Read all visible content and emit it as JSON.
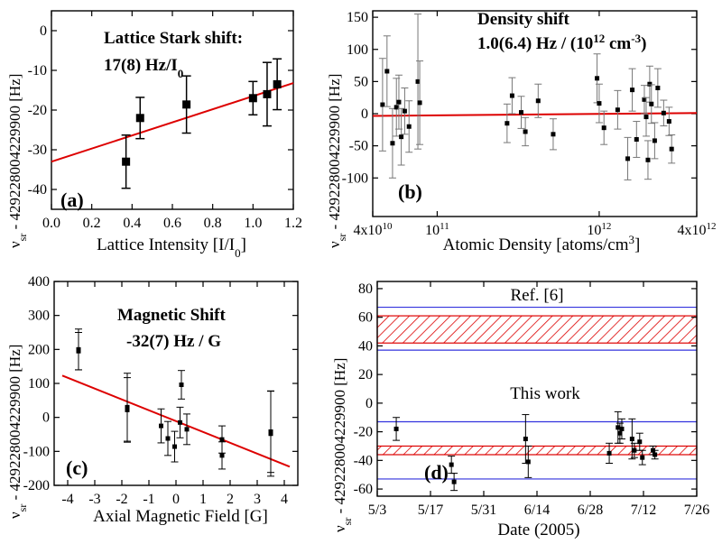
{
  "chart_data": [
    {
      "type": "scatter",
      "panel_label": "(a)",
      "title_lines": [
        "Lattice Stark shift:",
        "17(8) Hz/I"
      ],
      "title_sub": "0",
      "xlabel": "Lattice Intensity [I/I",
      "xlabel_sub": "0",
      "xlabel_end": "]",
      "ylabel": "ν",
      "ylabel_sub": "sr",
      "ylabel_rest": " - 429228004229900  [Hz]",
      "xlim": [
        0.0,
        1.2
      ],
      "ylim": [
        -45,
        5
      ],
      "xticks": [
        "0.0",
        "0.2",
        "0.4",
        "0.6",
        "0.8",
        "1.0",
        "1.2"
      ],
      "yticks": [
        "0",
        "-10",
        "-20",
        "-30",
        "-40"
      ],
      "xtick_values": [
        0.0,
        0.2,
        0.4,
        0.6,
        0.8,
        1.0,
        1.2
      ],
      "ytick_values": [
        0,
        -10,
        -20,
        -30,
        -40
      ],
      "points": [
        {
          "x": 0.37,
          "y": -33,
          "err": 6.7
        },
        {
          "x": 0.44,
          "y": -22,
          "err": 5.2
        },
        {
          "x": 0.67,
          "y": -18.6,
          "err": 7.2
        },
        {
          "x": 1.0,
          "y": -17,
          "err": 4.2
        },
        {
          "x": 1.07,
          "y": -16,
          "err": 8.0
        },
        {
          "x": 1.12,
          "y": -13.5,
          "err": 6.4
        }
      ],
      "fit": {
        "x": [
          0.0,
          1.2
        ],
        "y": [
          -33,
          -13.2
        ],
        "color": "#dd0000"
      }
    },
    {
      "type": "scatter",
      "panel_label": "(b)",
      "title_lines": [
        "Density shift",
        "1.0(6.4) Hz / (10"
      ],
      "title_sup": "12",
      "title_end": " cm",
      "title_end_sup": "-3",
      "title_close": ")",
      "xlabel": "Atomic Density [atoms/cm",
      "xlabel_sup": "3",
      "xlabel_end": "]",
      "ylabel": "ν",
      "ylabel_sub": "sr",
      "ylabel_rest": " - 429228004229900  [Hz]",
      "xscale": "log",
      "xlim": [
        40000000000.0,
        4000000000000.0
      ],
      "ylim": [
        -160,
        160
      ],
      "xticks": [
        "4x10",
        "10",
        "10",
        "4x10"
      ],
      "xtick_sups": [
        "10",
        "11",
        "12",
        "12"
      ],
      "xtick_values": [
        40000000000.0,
        100000000000.0,
        1000000000000.0,
        4000000000000.0
      ],
      "yticks": [
        "150",
        "100",
        "50",
        "0",
        "-50",
        "-100"
      ],
      "ytick_values": [
        150,
        100,
        50,
        0,
        -50,
        -100
      ],
      "points": [
        {
          "x": 46000000000.0,
          "y": 14,
          "err": 72
        },
        {
          "x": 49000000000.0,
          "y": 66,
          "err": 55
        },
        {
          "x": 53000000000.0,
          "y": -46,
          "err": 54
        },
        {
          "x": 56000000000.0,
          "y": 10,
          "err": 45
        },
        {
          "x": 58000000000.0,
          "y": 18,
          "err": 42
        },
        {
          "x": 60000000000.0,
          "y": -36,
          "err": 44
        },
        {
          "x": 63000000000.0,
          "y": 4,
          "err": 36
        },
        {
          "x": 67000000000.0,
          "y": -20,
          "err": 40
        },
        {
          "x": 76000000000.0,
          "y": 50,
          "err": 105
        },
        {
          "x": 78000000000.0,
          "y": 17,
          "err": 65
        },
        {
          "x": 270000000000.0,
          "y": -15,
          "err": 30
        },
        {
          "x": 290000000000.0,
          "y": 28,
          "err": 28
        },
        {
          "x": 330000000000.0,
          "y": 2,
          "err": 25
        },
        {
          "x": 350000000000.0,
          "y": -28,
          "err": 22
        },
        {
          "x": 420000000000.0,
          "y": 20,
          "err": 26
        },
        {
          "x": 520000000000.0,
          "y": -32,
          "err": 24
        },
        {
          "x": 970000000000.0,
          "y": 55,
          "err": 38
        },
        {
          "x": 1000000000000.0,
          "y": 16,
          "err": 30
        },
        {
          "x": 1070000000000.0,
          "y": -22,
          "err": 26
        },
        {
          "x": 1300000000000.0,
          "y": 6,
          "err": 30
        },
        {
          "x": 1500000000000.0,
          "y": -70,
          "err": 33
        },
        {
          "x": 1600000000000.0,
          "y": 37,
          "err": 33
        },
        {
          "x": 1700000000000.0,
          "y": -40,
          "err": 28
        },
        {
          "x": 1900000000000.0,
          "y": 22,
          "err": 22
        },
        {
          "x": 1950000000000.0,
          "y": -5,
          "err": 30
        },
        {
          "x": 2000000000000.0,
          "y": -72,
          "err": 30
        },
        {
          "x": 2050000000000.0,
          "y": 46,
          "err": 28
        },
        {
          "x": 2100000000000.0,
          "y": 15,
          "err": 30
        },
        {
          "x": 2200000000000.0,
          "y": -42,
          "err": 28
        },
        {
          "x": 2300000000000.0,
          "y": 40,
          "err": 30
        },
        {
          "x": 2500000000000.0,
          "y": 1,
          "err": 20
        },
        {
          "x": 2700000000000.0,
          "y": -12,
          "err": 22
        },
        {
          "x": 2800000000000.0,
          "y": -55,
          "err": 22
        }
      ],
      "fit": {
        "x": [
          40000000000.0,
          4000000000000.0
        ],
        "y": [
          -3.5,
          1.0
        ],
        "color": "#dd0000"
      }
    },
    {
      "type": "scatter",
      "panel_label": "(c)",
      "title_lines": [
        "Magnetic Shift",
        "-32(7) Hz / G"
      ],
      "xlabel": "Axial Magnetic Field  [G]",
      "ylabel": "ν",
      "ylabel_sub": "sr",
      "ylabel_rest": " - 429228004229900  [Hz]",
      "xlim": [
        -4.5,
        4.5
      ],
      "ylim": [
        -200,
        400
      ],
      "xticks": [
        "-4",
        "-3",
        "-2",
        "-1",
        "0",
        "1",
        "2",
        "3",
        "4"
      ],
      "xtick_values": [
        -4,
        -3,
        -2,
        -1,
        0,
        1,
        2,
        3,
        4
      ],
      "yticks": [
        "400",
        "300",
        "200",
        "100",
        "0",
        "-100",
        "-200"
      ],
      "ytick_values": [
        400,
        300,
        200,
        100,
        0,
        -100,
        -200
      ],
      "points": [
        {
          "x": -3.6,
          "y": 195,
          "err": 55
        },
        {
          "x": -3.6,
          "y": 200,
          "err": 60
        },
        {
          "x": -1.8,
          "y": 22,
          "err": 95
        },
        {
          "x": -1.8,
          "y": 30,
          "err": 100
        },
        {
          "x": -0.55,
          "y": -25,
          "err": 50
        },
        {
          "x": -0.3,
          "y": -62,
          "err": 50
        },
        {
          "x": -0.05,
          "y": -86,
          "err": 45
        },
        {
          "x": 0.15,
          "y": -15,
          "err": 45
        },
        {
          "x": 0.2,
          "y": 96,
          "err": 42
        },
        {
          "x": 0.4,
          "y": -35,
          "err": 45
        },
        {
          "x": 1.7,
          "y": -65,
          "err": 40
        },
        {
          "x": 1.7,
          "y": -112,
          "err": 40
        },
        {
          "x": 3.5,
          "y": -42,
          "err": 120
        },
        {
          "x": 3.5,
          "y": -48,
          "err": 125
        }
      ],
      "fit": {
        "x": [
          -4.2,
          4.2
        ],
        "y": [
          123,
          -145
        ],
        "color": "#dd0000"
      }
    },
    {
      "type": "scatter",
      "panel_label": "(d)",
      "annotations": [
        "Ref. [6]",
        "This work"
      ],
      "xlabel": "Date (2005)",
      "ylabel": "ν",
      "ylabel_sub": "sr",
      "ylabel_rest": " - 429228004229900  [Hz]",
      "xlim": [
        0,
        84
      ],
      "ylim": [
        -65,
        85
      ],
      "xticks": [
        "5/3",
        "5/17",
        "5/31",
        "6/14",
        "6/28",
        "7/12",
        "7/26"
      ],
      "xtick_values": [
        0,
        14,
        28,
        42,
        56,
        70,
        84
      ],
      "yticks": [
        "80",
        "60",
        "40",
        "20",
        "0",
        "-20",
        "-40",
        "-60"
      ],
      "ytick_values": [
        80,
        60,
        40,
        20,
        0,
        -20,
        -40,
        -60
      ],
      "points": [
        {
          "x": 5,
          "y": -18,
          "err": 8
        },
        {
          "x": 19.5,
          "y": -43,
          "err": 6
        },
        {
          "x": 20.2,
          "y": -55,
          "err": 6
        },
        {
          "x": 39,
          "y": -25,
          "err": 17
        },
        {
          "x": 39.7,
          "y": -41,
          "err": 11
        },
        {
          "x": 61,
          "y": -35,
          "err": 7
        },
        {
          "x": 63.3,
          "y": -17,
          "err": 11
        },
        {
          "x": 63.8,
          "y": -21,
          "err": 7
        },
        {
          "x": 64.3,
          "y": -18,
          "err": 7
        },
        {
          "x": 67,
          "y": -25,
          "err": 14
        },
        {
          "x": 67.6,
          "y": -33,
          "err": 5
        },
        {
          "x": 69,
          "y": -27,
          "err": 6
        },
        {
          "x": 69.7,
          "y": -38,
          "err": 5
        },
        {
          "x": 72.5,
          "y": -33,
          "err": 3
        },
        {
          "x": 73,
          "y": -36,
          "err": 3
        }
      ],
      "bands": [
        {
          "name": "Ref. [6]",
          "hatch": [
            42,
            61
          ],
          "outer": [
            37,
            67
          ],
          "hatch_color": "#dd0000",
          "line_color": "#3333dd"
        },
        {
          "name": "This work",
          "hatch": [
            -36,
            -30
          ],
          "outer": [
            -53,
            -13
          ],
          "hatch_color": "#dd0000",
          "line_color": "#3333dd"
        }
      ]
    }
  ]
}
